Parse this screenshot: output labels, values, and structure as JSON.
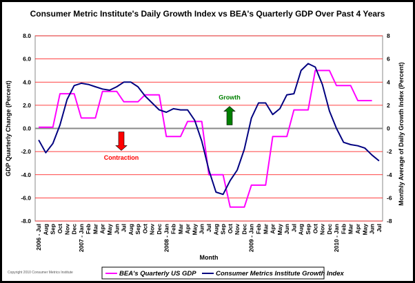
{
  "chart_data": {
    "type": "line",
    "title": "Consumer Metric Institute's Daily Growth Index vs BEA's Quarterly GDP Over Past 4 Years",
    "xlabel": "Month",
    "ylabel_left": "GDP Quarterly Change (Percent)",
    "ylabel_right": "Monthly Average of Daily Growth Index (Percent)",
    "ylim": [
      -8,
      8
    ],
    "left_ticks": [
      "8.0",
      "6.0",
      "4.0",
      "2.0",
      "0.0",
      "-2.0",
      "-4.0",
      "-6.0",
      "-8.0"
    ],
    "right_ticks": [
      "8",
      "6",
      "4",
      "2",
      "0",
      "-2",
      "-4",
      "-6",
      "-8"
    ],
    "categories": [
      "2006 - Jul",
      "Aug",
      "Sep",
      "Oct",
      "Nov",
      "Dec",
      "2007 - Jan",
      "Feb",
      "Mar",
      "Apr",
      "May",
      "Jun",
      "Jul",
      "Aug",
      "Sep",
      "Oct",
      "Nov",
      "Dec",
      "2008 - Jan",
      "Feb",
      "Mar",
      "Apr",
      "May",
      "Jun",
      "Jul",
      "Aug",
      "Sep",
      "Oct",
      "Nov",
      "Dec",
      "2009 - Jan",
      "Feb",
      "Mar",
      "Apr",
      "May",
      "Jun",
      "Jul",
      "Aug",
      "Sep",
      "Oct",
      "Nov",
      "Dec",
      "2010 - Jan",
      "Feb",
      "Mar",
      "Apr",
      "May",
      "Jun",
      "Jul"
    ],
    "series": [
      {
        "name": "BEA's Quarterly US GDP",
        "color": "#ff00ff",
        "values": [
          0.1,
          0.1,
          0.1,
          3.0,
          3.0,
          3.0,
          0.9,
          0.9,
          0.9,
          3.2,
          3.2,
          3.2,
          2.3,
          2.3,
          2.3,
          2.9,
          2.9,
          2.9,
          -0.7,
          -0.7,
          -0.7,
          0.6,
          0.6,
          0.6,
          -4.0,
          -4.0,
          -4.0,
          -6.8,
          -6.8,
          -6.8,
          -4.9,
          -4.9,
          -4.9,
          -0.7,
          -0.7,
          -0.7,
          1.6,
          1.6,
          1.6,
          5.0,
          5.0,
          5.0,
          3.7,
          3.7,
          3.7,
          2.4,
          2.4,
          2.4,
          null
        ]
      },
      {
        "name": "Consumer Metrics Institute Growth Index",
        "color": "#000080",
        "values": [
          -1.0,
          -2.1,
          -1.3,
          0.3,
          2.5,
          3.7,
          3.9,
          3.8,
          3.6,
          3.4,
          3.3,
          3.6,
          4.0,
          4.0,
          3.6,
          2.8,
          2.2,
          1.6,
          1.4,
          1.7,
          1.6,
          1.6,
          0.7,
          -1.1,
          -3.6,
          -5.5,
          -5.7,
          -4.5,
          -3.6,
          -1.8,
          0.9,
          2.2,
          2.2,
          1.2,
          1.7,
          2.9,
          3.0,
          5.0,
          5.6,
          5.3,
          3.8,
          1.5,
          0.0,
          -1.2,
          -1.4,
          -1.5,
          -1.7,
          -2.3,
          -2.8
        ]
      }
    ],
    "annotations": [
      {
        "text": "Growth",
        "color": "#008000"
      },
      {
        "text": "Contraction",
        "color": "#ff0000"
      }
    ],
    "copyright": "Copyright 2010 Consumer Metrics Institute"
  }
}
